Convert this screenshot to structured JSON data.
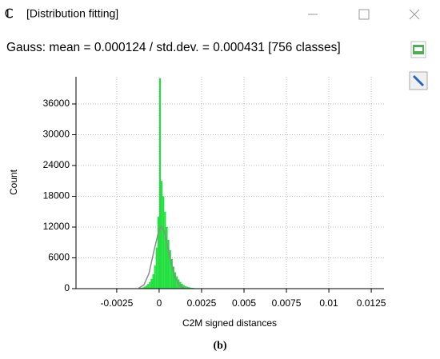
{
  "window": {
    "title": "[Distribution fitting]"
  },
  "header": "Gauss: mean = 0.000124 / std.dev. = 0.000431 [756 classes]",
  "caption": "(b)",
  "chart_data": {
    "type": "histogram",
    "xlabel": "C2M signed distances",
    "ylabel": "Count",
    "bins": [
      -0.0012,
      -0.0011,
      -0.001,
      -0.0009,
      -0.0008,
      -0.0007,
      -0.0006,
      -0.0005,
      -0.0004,
      -0.0003,
      -0.0002,
      -0.0001,
      0,
      0.0001,
      0.0002,
      0.0003,
      0.0004,
      0.0005,
      0.0006,
      0.0007,
      0.0008,
      0.0009,
      0.001,
      0.0011,
      0.0012,
      0.0013,
      0.0014,
      0.0015,
      0.0016,
      0.0017,
      0.0018,
      0.0019,
      0.002,
      0.0021,
      0.0022,
      0.0023,
      0.0024,
      0.0025,
      0.0026,
      0.0027,
      0.0028
    ],
    "counts": [
      100,
      150,
      250,
      400,
      600,
      900,
      1300,
      1900,
      2800,
      4500,
      8000,
      14000,
      41000,
      21000,
      18000,
      15000,
      12000,
      9500,
      7500,
      5800,
      4300,
      3200,
      2400,
      1800,
      1300,
      950,
      700,
      500,
      380,
      280,
      200,
      150,
      110,
      80,
      60,
      45,
      35,
      25,
      20,
      15
    ],
    "color": "#1fe03c",
    "fit": {
      "x": [
        -0.0012,
        -0.0009,
        -0.0006,
        -0.0003,
        0,
        0.000124,
        0.0003,
        0.0006,
        0.0009,
        0.0012,
        0.0015
      ],
      "y": [
        108,
        720,
        2950,
        7460,
        11610,
        12100,
        11130,
        6575,
        2395,
        536,
        74
      ],
      "color": "#8c8c8c"
    },
    "xlim": [
      -0.0049,
      0.01325
    ],
    "ylim": [
      0,
      41300
    ],
    "xticks": [
      -0.0025,
      0,
      0.0025,
      0.005,
      0.0075,
      0.01,
      0.0125
    ],
    "yticks": [
      0,
      6000,
      12000,
      18000,
      24000,
      30000,
      36000
    ],
    "grid": true
  }
}
